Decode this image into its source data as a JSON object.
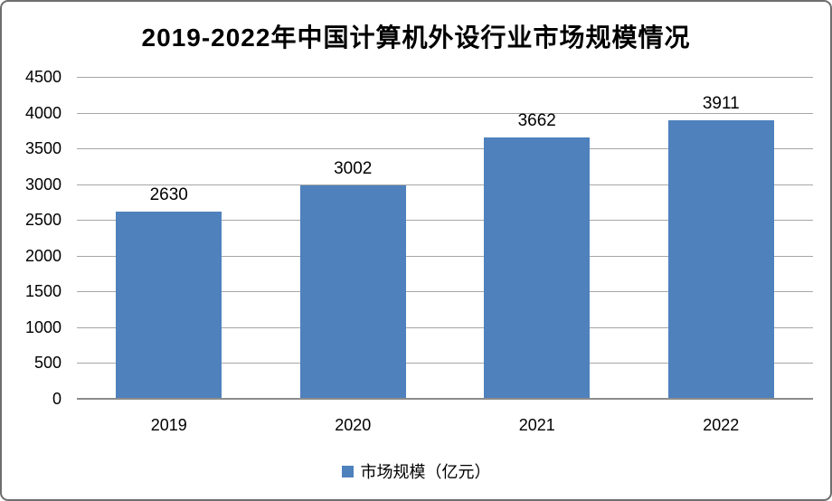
{
  "chart_data": {
    "type": "bar",
    "title": "2019-2022年中国计算机外设行业市场规模情况",
    "categories": [
      "2019",
      "2020",
      "2021",
      "2022"
    ],
    "values": [
      2630,
      3002,
      3662,
      3911
    ],
    "data_labels": [
      "2630",
      "3002",
      "3662",
      "3911"
    ],
    "series_name": "市场规模（亿元）",
    "legend": "市场规模（亿元）",
    "legend_position": "bottom",
    "xlabel": "",
    "ylabel": "",
    "ylim": [
      0,
      4500
    ],
    "ytick_step": 500,
    "yticks": [
      0,
      500,
      1000,
      1500,
      2000,
      2500,
      3000,
      3500,
      4000,
      4500
    ],
    "grid": "horizontal",
    "colors": {
      "bar": "#4F81BD",
      "legend_swatch": "#4F81BD",
      "gridline": "#A6A6A6",
      "axis_line": "#8C8C8C",
      "text": "#000000",
      "frame_border": "#6E6E6E",
      "background": "#FFFFFF"
    }
  }
}
